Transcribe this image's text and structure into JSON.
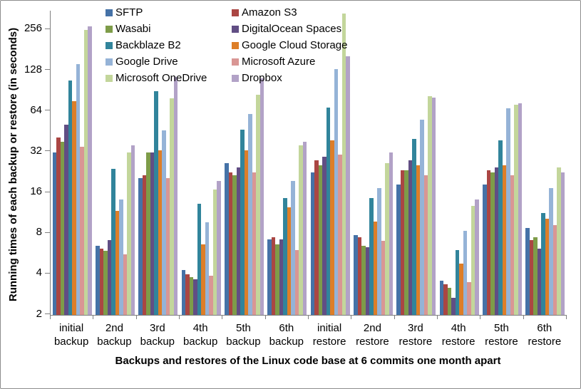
{
  "chart_data": {
    "type": "bar",
    "title": "",
    "xlabel": "Backups and restores of the Linux code base at 6 commits one month apart",
    "ylabel": "Running times of each backup or restore (in seconds)",
    "y_scale": "log2",
    "ylim": [
      2,
      256
    ],
    "y_ticks": [
      2,
      4,
      8,
      16,
      32,
      64,
      128,
      256
    ],
    "grid": false,
    "legend_position": "top-center-two-columns",
    "background_color": "#FFFFFF",
    "axis_color": "#808080",
    "text_color": "#000000",
    "categories": [
      "initial backup",
      "2nd backup",
      "3rd backup",
      "4th backup",
      "5th backup",
      "6th backup",
      "initial restore",
      "2nd restore",
      "3rd restore",
      "4th restore",
      "5th restore",
      "6th restore"
    ],
    "series": [
      {
        "name": "SFTP",
        "color": "#4572A7",
        "values": [
          31,
          6.3,
          20,
          4.2,
          26,
          7.1,
          22,
          7.6,
          18,
          3.5,
          18,
          8.6
        ]
      },
      {
        "name": "Amazon S3",
        "color": "#AA4643",
        "values": [
          40,
          6.0,
          21,
          3.9,
          22,
          7.3,
          27,
          7.3,
          23,
          3.3,
          23,
          7.0
        ]
      },
      {
        "name": "Wasabi",
        "color": "#7E9C49",
        "values": [
          37,
          5.8,
          31,
          3.7,
          21,
          6.5,
          25,
          6.3,
          23,
          3.1,
          22,
          7.3
        ]
      },
      {
        "name": "DigitalOcean Spaces",
        "color": "#614E84",
        "values": [
          50,
          7.0,
          31,
          3.6,
          24,
          7.1,
          29,
          6.2,
          27,
          2.6,
          24,
          6.0
        ]
      },
      {
        "name": "Backblaze B2",
        "color": "#31849B",
        "values": [
          105,
          23.5,
          88,
          13,
          46,
          14.3,
          67,
          14.2,
          39,
          5.9,
          38,
          11
        ]
      },
      {
        "name": "Google Cloud Storage",
        "color": "#DD7E28",
        "values": [
          74,
          11.5,
          32,
          6.5,
          32,
          12.2,
          38,
          9.6,
          25,
          4.7,
          25,
          10
        ]
      },
      {
        "name": "Google Drive",
        "color": "#95B3D7",
        "values": [
          140,
          14,
          45,
          9.5,
          60,
          19,
          128,
          17,
          54,
          8.2,
          66,
          17
        ]
      },
      {
        "name": "Microsoft Azure",
        "color": "#D99694",
        "values": [
          34,
          5.5,
          20,
          3.8,
          22,
          5.9,
          30,
          6.9,
          21,
          3.4,
          21,
          9.0
        ]
      },
      {
        "name": "Microsoft OneDrive",
        "color": "#C3D69B",
        "values": [
          250,
          31,
          78,
          16.5,
          83,
          35,
          330,
          26,
          81,
          12.5,
          70,
          24
        ]
      },
      {
        "name": "Dropbox",
        "color": "#B2A2C7",
        "values": [
          265,
          35,
          112,
          19,
          110,
          37,
          160,
          31,
          79,
          14,
          72,
          22
        ]
      }
    ]
  }
}
